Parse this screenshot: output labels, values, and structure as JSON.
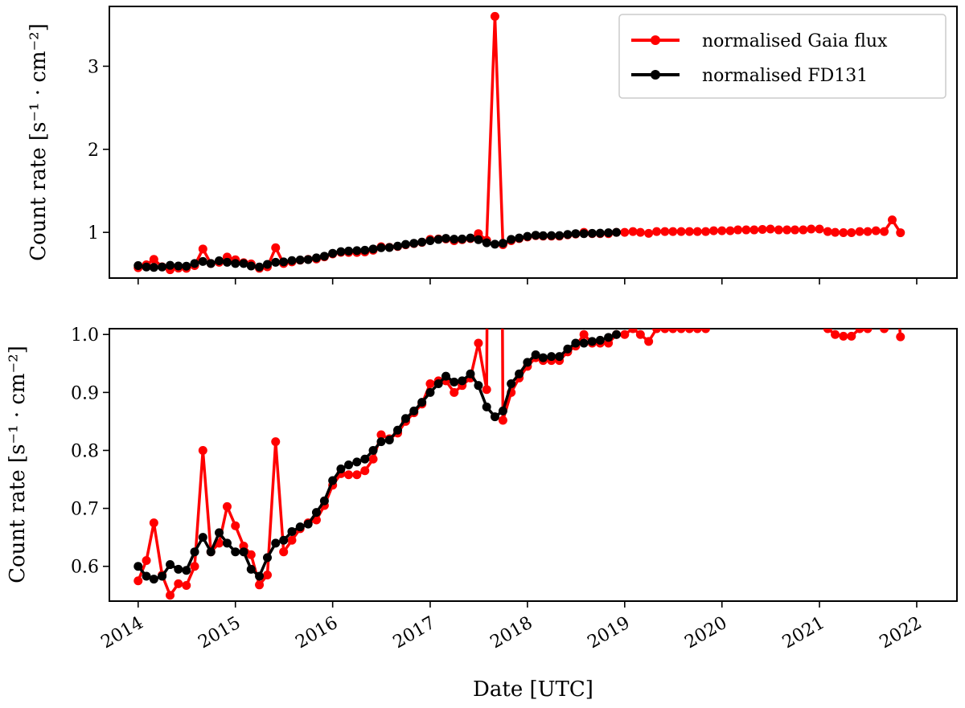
{
  "chart_data": [
    {
      "type": "line",
      "panel": "top",
      "xlabel": "",
      "ylabel": "Count rate [s⁻¹ · cm⁻²]",
      "xlim": [
        "2013-09-15",
        "2022-06-01"
      ],
      "ylim": [
        0.45,
        3.72
      ],
      "yticks": [
        1,
        2,
        3
      ],
      "ytick_labels": [
        "1",
        "2",
        "3"
      ],
      "legend": {
        "placement": "top-right",
        "entries": [
          "normalised Gaia flux",
          "normalised FD131"
        ]
      },
      "grid": false,
      "colors": {
        "gaia": "#ff0000",
        "fd131": "#000000"
      }
    },
    {
      "type": "line",
      "panel": "bottom",
      "xlabel": "Date [UTC]",
      "ylabel": "Count rate [s⁻¹ · cm⁻²]",
      "xlim": [
        "2013-09-15",
        "2022-06-01"
      ],
      "ylim": [
        0.54,
        1.01
      ],
      "yticks": [
        0.6,
        0.7,
        0.8,
        0.9,
        1.0
      ],
      "ytick_labels": [
        "0.6",
        "0.7",
        "0.8",
        "0.9",
        "1.0"
      ],
      "xtick_labels": [
        "2014",
        "2015",
        "2016",
        "2017",
        "2018",
        "2019",
        "2020",
        "2021",
        "2022"
      ],
      "grid": false
    }
  ],
  "series": {
    "gaia": {
      "name": "normalised Gaia flux",
      "x": [
        "2014-01-01",
        "2014-02-01",
        "2014-03-01",
        "2014-04-01",
        "2014-05-01",
        "2014-06-01",
        "2014-07-01",
        "2014-08-01",
        "2014-09-01",
        "2014-10-01",
        "2014-11-01",
        "2014-12-01",
        "2015-01-01",
        "2015-02-01",
        "2015-03-01",
        "2015-04-01",
        "2015-05-01",
        "2015-06-01",
        "2015-07-01",
        "2015-08-01",
        "2015-09-01",
        "2015-10-01",
        "2015-11-01",
        "2015-12-01",
        "2016-01-01",
        "2016-02-01",
        "2016-03-01",
        "2016-04-01",
        "2016-05-01",
        "2016-06-01",
        "2016-07-01",
        "2016-08-01",
        "2016-09-01",
        "2016-10-01",
        "2016-11-01",
        "2016-12-01",
        "2017-01-01",
        "2017-02-01",
        "2017-03-01",
        "2017-04-01",
        "2017-05-01",
        "2017-06-01",
        "2017-07-01",
        "2017-08-01",
        "2017-09-01",
        "2017-10-01",
        "2017-11-01",
        "2017-12-01",
        "2018-01-01",
        "2018-02-01",
        "2018-03-01",
        "2018-04-01",
        "2018-05-01",
        "2018-06-01",
        "2018-07-01",
        "2018-08-01",
        "2018-09-01",
        "2018-10-01",
        "2018-11-01",
        "2018-12-01",
        "2019-01-01",
        "2019-02-01",
        "2019-03-01",
        "2019-04-01",
        "2019-05-01",
        "2019-06-01",
        "2019-07-01",
        "2019-08-01",
        "2019-09-01",
        "2019-10-01",
        "2019-11-01",
        "2019-12-01",
        "2020-01-01",
        "2020-02-01",
        "2020-03-01",
        "2020-04-01",
        "2020-05-01",
        "2020-06-01",
        "2020-07-01",
        "2020-08-01",
        "2020-09-01",
        "2020-10-01",
        "2020-11-01",
        "2020-12-01",
        "2021-01-01",
        "2021-02-01",
        "2021-03-01",
        "2021-04-01",
        "2021-05-01",
        "2021-06-01",
        "2021-07-01",
        "2021-08-01",
        "2021-09-01",
        "2021-10-01",
        "2021-11-01"
      ],
      "y": [
        0.575,
        0.61,
        0.675,
        0.585,
        0.55,
        0.57,
        0.567,
        0.6,
        0.8,
        0.625,
        0.64,
        0.703,
        0.67,
        0.635,
        0.62,
        0.568,
        0.585,
        0.815,
        0.625,
        0.645,
        0.665,
        0.675,
        0.68,
        0.705,
        0.74,
        0.76,
        0.758,
        0.758,
        0.765,
        0.785,
        0.827,
        0.82,
        0.83,
        0.85,
        0.865,
        0.88,
        0.915,
        0.92,
        0.92,
        0.9,
        0.912,
        0.925,
        0.985,
        0.905,
        3.6,
        0.852,
        0.9,
        0.925,
        0.945,
        0.96,
        0.955,
        0.955,
        0.955,
        0.97,
        0.98,
        1.0,
        0.985,
        0.985,
        0.985,
        1.0,
        1.0,
        1.01,
        1.0,
        0.988,
        1.01,
        1.01,
        1.01,
        1.01,
        1.01,
        1.01,
        1.01,
        1.02,
        1.02,
        1.02,
        1.03,
        1.03,
        1.03,
        1.035,
        1.04,
        1.03,
        1.03,
        1.03,
        1.03,
        1.04,
        1.04,
        1.01,
        1.0,
        0.997,
        0.997,
        1.01,
        1.01,
        1.02,
        1.01,
        1.15,
        0.996
      ]
    },
    "fd131": {
      "name": "normalised FD131",
      "x": [
        "2014-01-01",
        "2014-02-01",
        "2014-03-01",
        "2014-04-01",
        "2014-05-01",
        "2014-06-01",
        "2014-07-01",
        "2014-08-01",
        "2014-09-01",
        "2014-10-01",
        "2014-11-01",
        "2014-12-01",
        "2015-01-01",
        "2015-02-01",
        "2015-03-01",
        "2015-04-01",
        "2015-05-01",
        "2015-06-01",
        "2015-07-01",
        "2015-08-01",
        "2015-09-01",
        "2015-10-01",
        "2015-11-01",
        "2015-12-01",
        "2016-01-01",
        "2016-02-01",
        "2016-03-01",
        "2016-04-01",
        "2016-05-01",
        "2016-06-01",
        "2016-07-01",
        "2016-08-01",
        "2016-09-01",
        "2016-10-01",
        "2016-11-01",
        "2016-12-01",
        "2017-01-01",
        "2017-02-01",
        "2017-03-01",
        "2017-04-01",
        "2017-05-01",
        "2017-06-01",
        "2017-07-01",
        "2017-08-01",
        "2017-09-01",
        "2017-10-01",
        "2017-11-01",
        "2017-12-01",
        "2018-01-01",
        "2018-02-01",
        "2018-03-01",
        "2018-04-01",
        "2018-05-01",
        "2018-06-01",
        "2018-07-01",
        "2018-08-01",
        "2018-09-01",
        "2018-10-01",
        "2018-11-01",
        "2018-12-01"
      ],
      "y": [
        0.6,
        0.583,
        0.578,
        0.583,
        0.603,
        0.595,
        0.593,
        0.625,
        0.65,
        0.625,
        0.658,
        0.64,
        0.625,
        0.625,
        0.595,
        0.583,
        0.615,
        0.64,
        0.645,
        0.66,
        0.668,
        0.673,
        0.693,
        0.713,
        0.748,
        0.768,
        0.775,
        0.78,
        0.785,
        0.8,
        0.815,
        0.818,
        0.835,
        0.855,
        0.868,
        0.883,
        0.9,
        0.915,
        0.928,
        0.918,
        0.92,
        0.932,
        0.912,
        0.875,
        0.858,
        0.868,
        0.915,
        0.932,
        0.952,
        0.965,
        0.96,
        0.962,
        0.962,
        0.975,
        0.985,
        0.985,
        0.988,
        0.99,
        0.995,
        1.0
      ]
    }
  }
}
